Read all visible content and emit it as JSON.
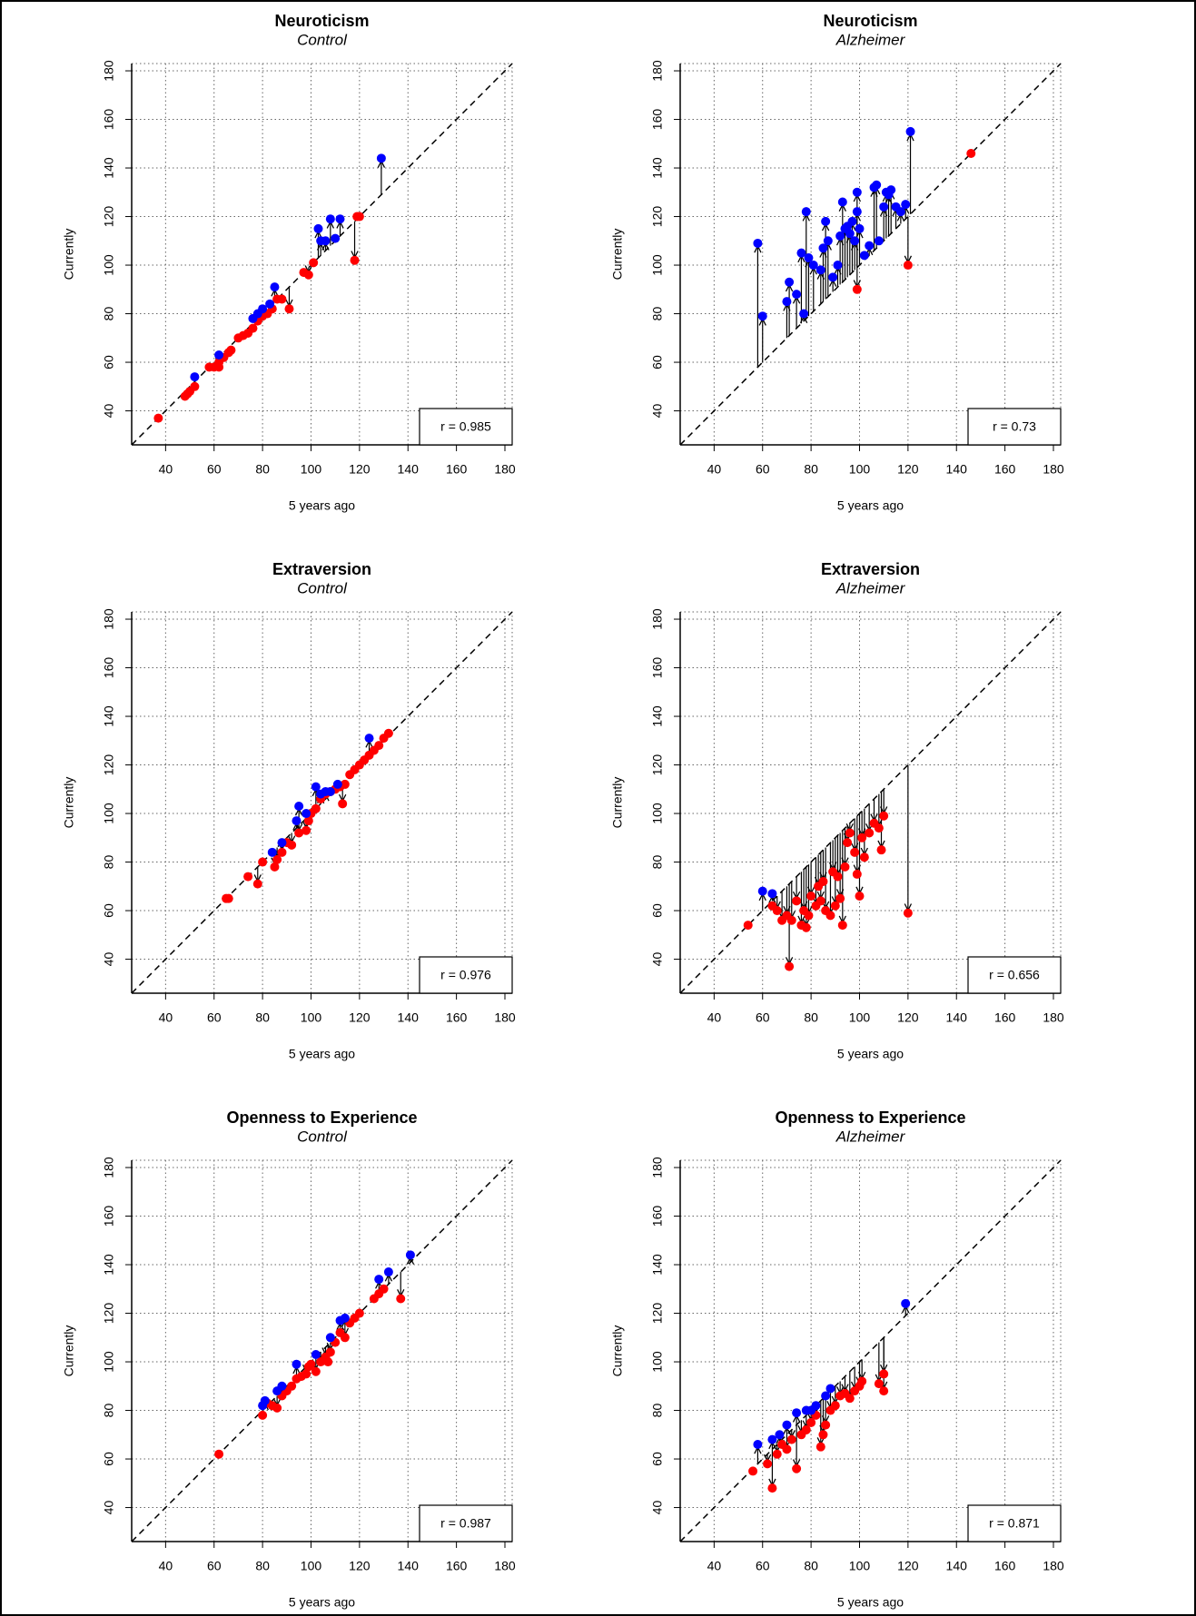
{
  "chart_data": [
    {
      "type": "scatter",
      "title": "Neuroticism",
      "subtitle": "Control",
      "x_label": "5 years ago",
      "y_label": "Currently",
      "xlim": [
        26,
        183
      ],
      "ylim": [
        26,
        183
      ],
      "xticks": [
        40,
        60,
        80,
        100,
        120,
        140,
        160,
        180
      ],
      "yticks": [
        40,
        60,
        80,
        100,
        120,
        140,
        160,
        180
      ],
      "grid": true,
      "annotation": "r = 0.985",
      "series": [
        {
          "color": "#ff0000",
          "x": [
            37,
            48,
            49,
            50,
            52,
            58,
            60,
            62,
            62,
            64,
            66,
            67,
            70,
            72,
            74,
            76,
            78,
            80,
            82,
            84,
            86,
            88,
            91,
            97,
            99,
            101,
            118,
            119,
            120
          ],
          "values": [
            37,
            46,
            47,
            48,
            50,
            58,
            58,
            58,
            60,
            62,
            64,
            65,
            70,
            71,
            72,
            74,
            77,
            79,
            80,
            82,
            86,
            86,
            82,
            97,
            96,
            101,
            102,
            120,
            120
          ]
        },
        {
          "color": "#0000ff",
          "x": [
            52,
            62,
            76,
            78,
            80,
            83,
            85,
            103,
            104,
            106,
            108,
            110,
            112,
            129
          ],
          "values": [
            54,
            63,
            78,
            80,
            82,
            84,
            91,
            115,
            110,
            110,
            119,
            111,
            119,
            144
          ]
        }
      ]
    },
    {
      "type": "scatter",
      "title": "Neuroticism",
      "subtitle": "Alzheimer",
      "x_label": "5 years ago",
      "y_label": "Currently",
      "xlim": [
        26,
        183
      ],
      "ylim": [
        26,
        183
      ],
      "xticks": [
        40,
        60,
        80,
        100,
        120,
        140,
        160,
        180
      ],
      "yticks": [
        40,
        60,
        80,
        100,
        120,
        140,
        160,
        180
      ],
      "grid": true,
      "annotation": "r = 0.73",
      "series": [
        {
          "color": "#ff0000",
          "x": [
            99,
            120,
            146
          ],
          "values": [
            90,
            100,
            146
          ]
        },
        {
          "color": "#0000ff",
          "x": [
            58,
            60,
            70,
            71,
            74,
            76,
            77,
            78,
            79,
            81,
            84,
            85,
            86,
            87,
            89,
            91,
            92,
            93,
            94,
            95,
            96,
            97,
            98,
            99,
            99,
            100,
            102,
            104,
            106,
            107,
            108,
            110,
            111,
            112,
            113,
            115,
            117,
            119,
            121
          ],
          "values": [
            109,
            79,
            85,
            93,
            88,
            105,
            80,
            122,
            103,
            100,
            98,
            107,
            118,
            110,
            95,
            100,
            112,
            126,
            115,
            116,
            113,
            118,
            110,
            130,
            122,
            115,
            104,
            108,
            132,
            133,
            110,
            124,
            130,
            129,
            131,
            124,
            122,
            125,
            155
          ]
        }
      ]
    },
    {
      "type": "scatter",
      "title": "Extraversion",
      "subtitle": "Control",
      "x_label": "5 years ago",
      "y_label": "Currently",
      "xlim": [
        26,
        183
      ],
      "ylim": [
        26,
        183
      ],
      "xticks": [
        40,
        60,
        80,
        100,
        120,
        140,
        160,
        180
      ],
      "yticks": [
        40,
        60,
        80,
        100,
        120,
        140,
        160,
        180
      ],
      "grid": true,
      "annotation": "r = 0.976",
      "series": [
        {
          "color": "#ff0000",
          "x": [
            65,
            66,
            74,
            78,
            80,
            85,
            86,
            88,
            90,
            92,
            95,
            98,
            99,
            100,
            102,
            104,
            106,
            108,
            110,
            112,
            113,
            114,
            116,
            118,
            120,
            122,
            124,
            126,
            128,
            130,
            132
          ],
          "values": [
            65,
            65,
            74,
            71,
            80,
            78,
            81,
            84,
            88,
            87,
            92,
            93,
            97,
            100,
            102,
            106,
            108,
            109,
            110,
            111,
            104,
            112,
            116,
            118,
            120,
            122,
            124,
            126,
            128,
            131,
            133
          ]
        },
        {
          "color": "#0000ff",
          "x": [
            84,
            88,
            94,
            95,
            98,
            102,
            104,
            106,
            108,
            111,
            124
          ],
          "values": [
            84,
            88,
            97,
            103,
            100,
            111,
            108,
            109,
            109,
            112,
            131
          ]
        }
      ]
    },
    {
      "type": "scatter",
      "title": "Extraversion",
      "subtitle": "Alzheimer",
      "x_label": "5 years ago",
      "y_label": "Currently",
      "xlim": [
        26,
        183
      ],
      "ylim": [
        26,
        183
      ],
      "xticks": [
        40,
        60,
        80,
        100,
        120,
        140,
        160,
        180
      ],
      "yticks": [
        40,
        60,
        80,
        100,
        120,
        140,
        160,
        180
      ],
      "grid": true,
      "annotation": "r = 0.656",
      "series": [
        {
          "color": "#ff0000",
          "x": [
            54,
            64,
            66,
            68,
            70,
            71,
            72,
            74,
            76,
            77,
            78,
            79,
            80,
            82,
            83,
            84,
            85,
            86,
            88,
            89,
            90,
            91,
            92,
            93,
            94,
            95,
            96,
            98,
            99,
            100,
            101,
            102,
            104,
            106,
            108,
            109,
            110,
            120
          ],
          "values": [
            54,
            62,
            60,
            56,
            58,
            37,
            56,
            64,
            54,
            60,
            53,
            58,
            66,
            62,
            70,
            64,
            72,
            60,
            58,
            76,
            62,
            74,
            65,
            54,
            78,
            88,
            92,
            84,
            75,
            66,
            90,
            82,
            92,
            96,
            94,
            85,
            99,
            59
          ]
        },
        {
          "color": "#0000ff",
          "x": [
            60,
            64
          ],
          "values": [
            68,
            67
          ]
        }
      ]
    },
    {
      "type": "scatter",
      "title": "Openness to Experience",
      "subtitle": "Control",
      "x_label": "5 years ago",
      "y_label": "Currently",
      "xlim": [
        26,
        183
      ],
      "ylim": [
        26,
        183
      ],
      "xticks": [
        40,
        60,
        80,
        100,
        120,
        140,
        160,
        180
      ],
      "yticks": [
        40,
        60,
        80,
        100,
        120,
        140,
        160,
        180
      ],
      "grid": true,
      "annotation": "r = 0.987",
      "series": [
        {
          "color": "#ff0000",
          "x": [
            62,
            80,
            82,
            84,
            86,
            88,
            90,
            92,
            94,
            96,
            98,
            99,
            100,
            102,
            104,
            106,
            107,
            108,
            110,
            112,
            114,
            116,
            118,
            120,
            126,
            128,
            130,
            137
          ],
          "values": [
            62,
            78,
            83,
            82,
            81,
            86,
            88,
            90,
            93,
            94,
            95,
            98,
            99,
            96,
            100,
            102,
            100,
            104,
            108,
            112,
            110,
            116,
            118,
            120,
            126,
            128,
            130,
            126
          ]
        },
        {
          "color": "#0000ff",
          "x": [
            80,
            81,
            86,
            88,
            94,
            102,
            108,
            112,
            114,
            128,
            132,
            141
          ],
          "values": [
            82,
            84,
            88,
            90,
            99,
            103,
            110,
            117,
            118,
            134,
            137,
            144
          ]
        }
      ]
    },
    {
      "type": "scatter",
      "title": "Openness to Experience",
      "subtitle": "Alzheimer",
      "x_label": "5 years ago",
      "y_label": "Currently",
      "xlim": [
        26,
        183
      ],
      "ylim": [
        26,
        183
      ],
      "xticks": [
        40,
        60,
        80,
        100,
        120,
        140,
        160,
        180
      ],
      "yticks": [
        40,
        60,
        80,
        100,
        120,
        140,
        160,
        180
      ],
      "grid": true,
      "annotation": "r = 0.871",
      "series": [
        {
          "color": "#ff0000",
          "x": [
            56,
            62,
            64,
            66,
            68,
            70,
            72,
            74,
            76,
            78,
            80,
            82,
            84,
            85,
            86,
            88,
            90,
            92,
            94,
            96,
            98,
            100,
            101,
            108,
            110,
            110
          ],
          "values": [
            55,
            58,
            48,
            62,
            66,
            64,
            68,
            56,
            70,
            72,
            75,
            78,
            65,
            70,
            74,
            80,
            82,
            86,
            87,
            85,
            88,
            90,
            92,
            91,
            88,
            95
          ]
        },
        {
          "color": "#0000ff",
          "x": [
            58,
            64,
            67,
            70,
            74,
            78,
            80,
            82,
            86,
            88,
            119
          ],
          "values": [
            66,
            68,
            70,
            74,
            79,
            80,
            80,
            82,
            86,
            89,
            124
          ]
        }
      ]
    }
  ]
}
